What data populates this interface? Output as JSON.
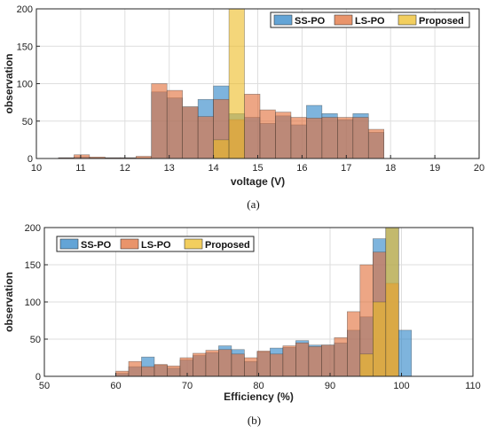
{
  "series_colors": {
    "SS-PO": "#2f86c8",
    "LS-PO": "#e2703a",
    "Proposed": "#edbd28"
  },
  "chart_data": [
    {
      "type": "bar",
      "caption": "(a)",
      "xlabel": "voltage (V)",
      "ylabel": "observation",
      "xlim": [
        10,
        20
      ],
      "ylim": [
        0,
        200
      ],
      "xticks": [
        10,
        11,
        12,
        13,
        14,
        15,
        16,
        17,
        18,
        19,
        20
      ],
      "yticks": [
        0,
        50,
        100,
        150,
        200
      ],
      "grid": true,
      "legend_position": "top-right",
      "bin_width": 0.35,
      "series": [
        {
          "name": "SS-PO",
          "bin_starts": [
            10.5,
            10.85,
            11.2,
            11.55,
            11.9,
            12.25,
            12.6,
            12.95,
            13.3,
            13.65,
            14.0,
            14.35,
            14.7,
            15.05,
            15.4,
            15.75,
            16.1,
            16.45,
            16.8,
            17.15,
            17.5
          ],
          "values": [
            1,
            2,
            1,
            1,
            1,
            1,
            89,
            81,
            69,
            79,
            97,
            60,
            55,
            47,
            57,
            45,
            71,
            60,
            52,
            60,
            35
          ]
        },
        {
          "name": "LS-PO",
          "bin_starts": [
            10.5,
            10.85,
            11.2,
            11.55,
            11.9,
            12.25,
            12.6,
            12.95,
            13.3,
            13.65,
            14.0,
            14.35,
            14.7,
            15.05,
            15.4,
            15.75,
            16.1,
            16.45,
            16.8,
            17.15,
            17.5
          ],
          "values": [
            1,
            5,
            2,
            1,
            1,
            3,
            100,
            91,
            69,
            56,
            79,
            52,
            86,
            65,
            62,
            55,
            54,
            55,
            55,
            55,
            39
          ]
        },
        {
          "name": "Proposed",
          "bin_starts": [
            14.0,
            14.35
          ],
          "values": [
            25,
            200
          ]
        }
      ]
    },
    {
      "type": "bar",
      "caption": "(b)",
      "xlabel": "Efficiency (%)",
      "ylabel": "observation",
      "xlim": [
        50,
        110
      ],
      "ylim": [
        0,
        200
      ],
      "xticks": [
        50,
        60,
        70,
        80,
        90,
        100,
        110
      ],
      "yticks": [
        0,
        50,
        100,
        150,
        200
      ],
      "grid": true,
      "legend_position": "top-left",
      "bin_width": 1.8,
      "series": [
        {
          "name": "SS-PO",
          "bin_starts": [
            60.0,
            61.8,
            63.6,
            65.4,
            67.2,
            69.0,
            70.8,
            72.6,
            74.4,
            76.2,
            78.0,
            79.8,
            81.6,
            83.4,
            85.2,
            87.0,
            88.8,
            90.6,
            92.4,
            94.2,
            96.0,
            97.8,
            99.6
          ],
          "values": [
            4,
            13,
            26,
            15,
            11,
            22,
            28,
            32,
            41,
            36,
            20,
            33,
            38,
            39,
            48,
            42,
            42,
            45,
            62,
            80,
            185,
            200,
            62
          ]
        },
        {
          "name": "LS-PO",
          "bin_starts": [
            60.0,
            61.8,
            63.6,
            65.4,
            67.2,
            69.0,
            70.8,
            72.6,
            74.4,
            76.2,
            78.0,
            79.8,
            81.6,
            83.4,
            85.2,
            87.0,
            88.8,
            90.6,
            92.4,
            94.2,
            96.0,
            97.8
          ],
          "values": [
            7,
            20,
            13,
            16,
            14,
            25,
            31,
            35,
            36,
            30,
            25,
            34,
            30,
            41,
            45,
            40,
            42,
            52,
            87,
            150,
            167,
            125
          ]
        },
        {
          "name": "Proposed",
          "bin_starts": [
            94.2,
            96.0,
            97.8
          ],
          "values": [
            30,
            100,
            200
          ]
        }
      ]
    }
  ]
}
